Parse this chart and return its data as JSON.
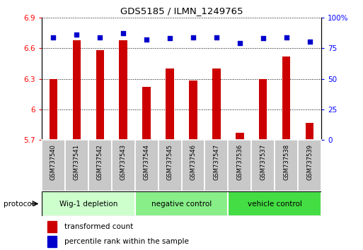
{
  "title": "GDS5185 / ILMN_1249765",
  "samples": [
    "GSM737540",
    "GSM737541",
    "GSM737542",
    "GSM737543",
    "GSM737544",
    "GSM737545",
    "GSM737546",
    "GSM737547",
    "GSM737536",
    "GSM737537",
    "GSM737538",
    "GSM737539"
  ],
  "bar_values": [
    6.3,
    6.68,
    6.58,
    6.68,
    6.22,
    6.4,
    6.28,
    6.4,
    5.77,
    6.3,
    6.52,
    5.87
  ],
  "percentile_values": [
    84,
    86,
    84,
    87,
    82,
    83,
    84,
    84,
    79,
    83,
    84,
    80
  ],
  "bar_color": "#cc0000",
  "percentile_color": "#0000cc",
  "ylim_left": [
    5.7,
    6.9
  ],
  "ylim_right": [
    0,
    100
  ],
  "yticks_left": [
    5.7,
    6.0,
    6.3,
    6.6,
    6.9
  ],
  "yticks_right": [
    0,
    25,
    50,
    75,
    100
  ],
  "ytick_labels_left": [
    "5.7",
    "6",
    "6.3",
    "6.6",
    "6.9"
  ],
  "ytick_labels_right": [
    "0",
    "25",
    "50",
    "75",
    "100%"
  ],
  "groups": [
    {
      "label": "Wig-1 depletion",
      "start": 0,
      "end": 4,
      "color": "#ccffcc"
    },
    {
      "label": "negative control",
      "start": 4,
      "end": 8,
      "color": "#88ee88"
    },
    {
      "label": "vehicle control",
      "start": 8,
      "end": 12,
      "color": "#44dd44"
    }
  ],
  "protocol_label": "protocol",
  "legend_items": [
    {
      "label": "transformed count",
      "color": "#cc0000"
    },
    {
      "label": "percentile rank within the sample",
      "color": "#0000cc"
    }
  ],
  "bar_width": 0.35,
  "baseline": 5.7,
  "cell_color": "#c8c8c8"
}
